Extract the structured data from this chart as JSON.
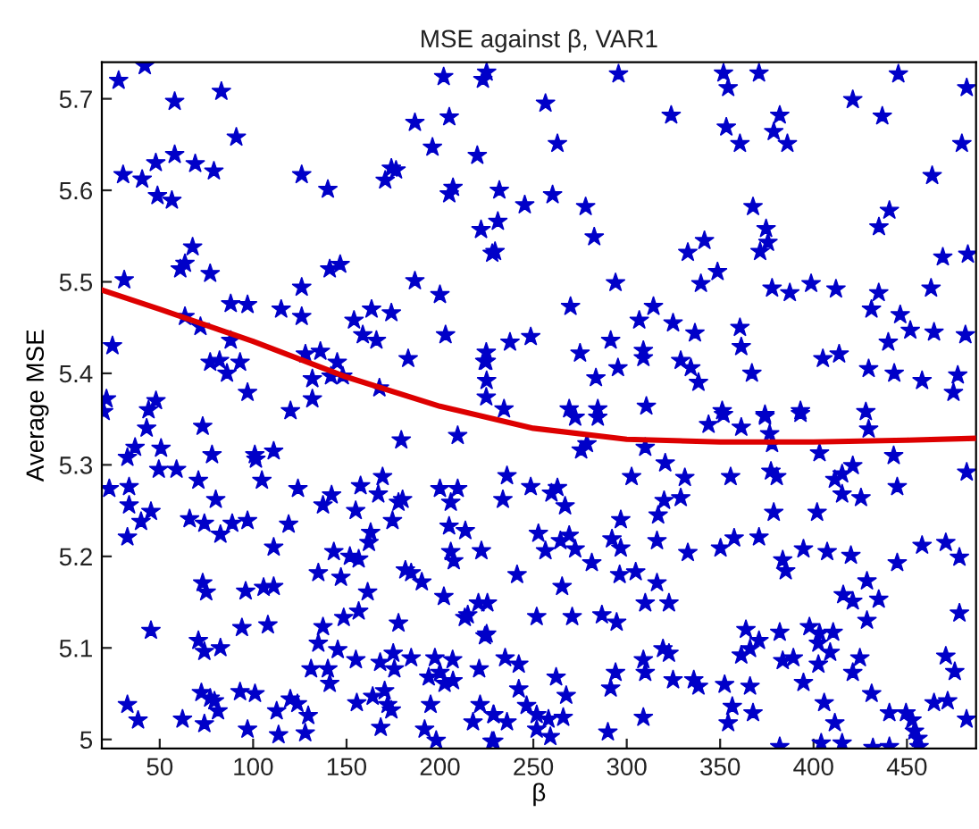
{
  "chart_data": {
    "type": "scatter",
    "title": "MSE against β, VAR1",
    "xlabel": "β",
    "ylabel": "Average MSE",
    "xlim": [
      19,
      487
    ],
    "ylim": [
      4.99,
      5.74
    ],
    "xticks": [
      50,
      100,
      150,
      200,
      250,
      300,
      350,
      400,
      450
    ],
    "yticks": [
      5,
      5.1,
      5.2,
      5.3,
      5.4,
      5.5,
      5.6,
      5.7
    ],
    "grid": false,
    "marker": "star",
    "series": [
      {
        "color": "#0000c8",
        "x": [
          28,
          42,
          58,
          83,
          91,
          30.4,
          40.6,
          47.9,
          58,
          69,
          79,
          48.8,
          56.5,
          31,
          24.7,
          67.6,
          63.5,
          61,
          77,
          88,
          97,
          63.5,
          71.8,
          77,
          82,
          86,
          93,
          88,
          97,
          21.5,
          20,
          44,
          48,
          120,
          126,
          140,
          126,
          141,
          146.6,
          115,
          126,
          154,
          163.4,
          174,
          158.7,
          166,
          128,
          136,
          131.7,
          145,
          141.7,
          148,
          167.6,
          131.7,
          183,
          186.6,
          186.6,
          196,
          205,
          202,
          225,
          223,
          170.7,
          174,
          176.5,
          205,
          207,
          220,
          222,
          228,
          200,
          203,
          224,
          225,
          295.6,
          256.5,
          323.8,
          262.9,
          351.8,
          370.8,
          354.3,
          353.3,
          381.9,
          378.7,
          360.6,
          386,
          421,
          436.8,
          445.4,
          482,
          479.4,
          463.5,
          231.8,
          245.4,
          260.3,
          278,
          282.6,
          229.5,
          231,
          294,
          269.9,
          367.6,
          374.6,
          375.6,
          371.4,
          341.6,
          332.7,
          348.6,
          339.7,
          440.6,
          435,
          469.2,
          482.6,
          377.8,
          387.3,
          398.7,
          412,
          434.9,
          462.9,
          431,
          446.4,
          314.3,
          306.7,
          324.8,
          336.5,
          360.6,
          361.3,
          237.5,
          248.6,
          224.8,
          224.8,
          275,
          291.4,
          308.9,
          308.9,
          328.9,
          334.3,
          338.4,
          295.3,
          283.5,
          367,
          405,
          413.7,
          429.5,
          440,
          451.8,
          464.5,
          481.3,
          443.2,
          458.1,
          477.2,
          474.9,
          224.8,
          234.3,
          269.2,
          284.5,
          310.5,
          351.1,
          393,
          374,
          428,
          23,
          32.7,
          36.8,
          43,
          33.6,
          33.6,
          40,
          45.3,
          32.7,
          50.7,
          49.5,
          59,
          73,
          78,
          70.7,
          80,
          66,
          73.9,
          82.5,
          88.8,
          97,
          100.9,
          101.5,
          111,
          104.7,
          124,
          119,
          111,
          45.3,
          73,
          74.9,
          96,
          105.6,
          111,
          107.9,
          94,
          70.7,
          73.9,
          82.5,
          32.7,
          38.4,
          62.2,
          73.9,
          72.3,
          77,
          79.3,
          81.2,
          93,
          101,
          97,
          112.6,
          113.6,
          119.9,
          123.7,
          129.5,
          127.9,
          131,
          140,
          141,
          134.9,
          137.4,
          145.3,
          148.5,
          134.9,
          147,
          143.2,
          151.8,
          156.5,
          155,
          156.5,
          161.3,
          162,
          162.9,
          137.4,
          142,
          157.5,
          154.9,
          167,
          169.3,
          174.6,
          177.8,
          180,
          179.3,
          209.5,
          200,
          209.5,
          205.8,
          213.6,
          204.9,
          205.8,
          207.4,
          222.2,
          190.3,
          181.5,
          184.6,
          202.1,
          220.6,
          214.9,
          213.3,
          225,
          177.8,
          175,
          175.6,
          168,
          184.6,
          197.3,
          206.8,
          200,
          194,
          202.5,
          207,
          221,
          155.5,
          164,
          170.4,
          172,
          174,
          195,
          168.3,
          191.8,
          198,
          217.7,
          221.5,
          228.8,
          228.8,
          284.5,
          272.4,
          351.8,
          374,
          393,
          343.8,
          361.3,
          429.5,
          278.7,
          275.6,
          309.9,
          376.5,
          377.8,
          403.2,
          442.9,
          482,
          235.9,
          248.6,
          233.7,
          262.9,
          259.7,
          267,
          302.6,
          320.6,
          331.1,
          328.9,
          320,
          316.8,
          296.8,
          355.6,
          377.2,
          380.3,
          378.7,
          401.9,
          411.4,
          415.3,
          421,
          415.3,
          425.4,
          444.8,
          252.7,
          256.5,
          264.5,
          269.2,
          272.4,
          281.3,
          292.1,
          296.8,
          296.2,
          304.8,
          316.2,
          316.2,
          332.7,
          350.2,
          357.5,
          370.8,
          383.5,
          385.1,
          394.6,
          407.3,
          420,
          444.8,
          458.1,
          470.8,
          478.1,
          241.3,
          265.4,
          309.9,
          322.6,
          251.8,
          225.4,
          270.8,
          286.7,
          294.6,
          224.1,
          415.9,
          421,
          428.6,
          434.9,
          428.6,
          397.8,
          403.2,
          410.5,
          402.6,
          408.9,
          363.8,
          370.8,
          366,
          361.3,
          381.9,
          383.5,
          389.2,
          402.6,
          424.8,
          421,
          478.1,
          470.8,
          475.6,
          234.9,
          242.2,
          262.2,
          242.2,
          267.6,
          246.4,
          251.8,
          258.1,
          266,
          228.6,
          235.9,
          227.9,
          251.8,
          259.1,
          289.9,
          294,
          291.4,
          308.9,
          309.9,
          319.4,
          322.6,
          324.8,
          335.9,
          338.4,
          352.4,
          366,
          308.9,
          356.5,
          354.3,
          367.6,
          394.6,
          405.7,
          411.4,
          404.1,
          415.3,
          431.1,
          381.9,
          431.8,
          440.6,
          440.6,
          449.5,
          452.7,
          454,
          455.9,
          456.5,
          464.5,
          471.8,
          481.9
        ],
        "values": [
          5.72,
          5.736,
          5.697,
          5.708,
          5.658,
          5.617,
          5.612,
          5.63,
          5.639,
          5.629,
          5.621,
          5.594,
          5.589,
          5.502,
          5.43,
          5.538,
          5.52,
          5.514,
          5.509,
          5.476,
          5.475,
          5.462,
          5.451,
          5.412,
          5.414,
          5.4,
          5.412,
          5.436,
          5.379,
          5.372,
          5.358,
          5.36,
          5.37,
          5.359,
          5.617,
          5.601,
          5.494,
          5.514,
          5.519,
          5.47,
          5.462,
          5.458,
          5.47,
          5.466,
          5.442,
          5.436,
          5.421,
          5.424,
          5.394,
          5.412,
          5.397,
          5.397,
          5.384,
          5.372,
          5.416,
          5.501,
          5.674,
          5.647,
          5.68,
          5.724,
          5.729,
          5.721,
          5.611,
          5.624,
          5.622,
          5.596,
          5.603,
          5.638,
          5.557,
          5.531,
          5.486,
          5.442,
          5.413,
          5.392,
          5.727,
          5.695,
          5.682,
          5.651,
          5.728,
          5.728,
          5.712,
          5.669,
          5.682,
          5.664,
          5.651,
          5.651,
          5.699,
          5.681,
          5.727,
          5.712,
          5.651,
          5.616,
          5.6,
          5.584,
          5.595,
          5.582,
          5.549,
          5.533,
          5.566,
          5.499,
          5.473,
          5.582,
          5.558,
          5.543,
          5.533,
          5.545,
          5.532,
          5.511,
          5.498,
          5.578,
          5.56,
          5.527,
          5.53,
          5.493,
          5.488,
          5.498,
          5.492,
          5.488,
          5.493,
          5.47,
          5.464,
          5.473,
          5.458,
          5.455,
          5.444,
          5.45,
          5.429,
          5.434,
          5.44,
          5.423,
          5.413,
          5.422,
          5.436,
          5.425,
          5.417,
          5.414,
          5.406,
          5.39,
          5.406,
          5.395,
          5.4,
          5.416,
          5.421,
          5.405,
          5.434,
          5.447,
          5.445,
          5.442,
          5.4,
          5.392,
          5.398,
          5.379,
          5.374,
          5.361,
          5.361,
          5.361,
          5.364,
          5.359,
          5.359,
          5.355,
          5.358,
          5.274,
          5.308,
          5.319,
          5.34,
          5.276,
          5.256,
          5.238,
          5.249,
          5.221,
          5.318,
          5.295,
          5.295,
          5.342,
          5.311,
          5.283,
          5.262,
          5.241,
          5.236,
          5.224,
          5.236,
          5.239,
          5.311,
          5.306,
          5.315,
          5.283,
          5.274,
          5.235,
          5.21,
          5.119,
          5.171,
          5.161,
          5.162,
          5.166,
          5.167,
          5.125,
          5.122,
          5.108,
          5.096,
          5.1,
          5.038,
          5.021,
          5.022,
          5.017,
          5.051,
          5.045,
          5.042,
          5.031,
          5.052,
          5.05,
          5.011,
          5.031,
          5.005,
          5.044,
          5.039,
          5.026,
          5.007,
          5.077,
          5.077,
          5.061,
          5.105,
          5.123,
          5.098,
          5.133,
          5.182,
          5.177,
          5.205,
          5.2,
          5.197,
          5.087,
          5.14,
          5.161,
          5.215,
          5.226,
          5.256,
          5.267,
          5.277,
          5.25,
          5.268,
          5.287,
          5.239,
          5.259,
          5.262,
          5.327,
          5.332,
          5.274,
          5.274,
          5.259,
          5.228,
          5.233,
          5.205,
          5.195,
          5.206,
          5.172,
          5.185,
          5.182,
          5.156,
          5.149,
          5.136,
          5.133,
          5.115,
          5.127,
          5.094,
          5.077,
          5.084,
          5.089,
          5.089,
          5.087,
          5.073,
          5.068,
          5.061,
          5.064,
          5.077,
          5.04,
          5.047,
          5.053,
          5.038,
          5.032,
          5.038,
          5.013,
          5.011,
          4.999,
          5.019,
          5.038,
          4.998,
          5.027,
          5.352,
          5.352,
          5.355,
          5.353,
          5.356,
          5.344,
          5.341,
          5.339,
          5.323,
          5.316,
          5.319,
          5.334,
          5.323,
          5.313,
          5.31,
          5.292,
          5.288,
          5.276,
          5.262,
          5.275,
          5.269,
          5.255,
          5.287,
          5.302,
          5.286,
          5.264,
          5.261,
          5.245,
          5.24,
          5.287,
          5.293,
          5.287,
          5.248,
          5.248,
          5.284,
          5.29,
          5.299,
          5.268,
          5.264,
          5.276,
          5.225,
          5.206,
          5.217,
          5.223,
          5.208,
          5.193,
          5.219,
          5.209,
          5.18,
          5.183,
          5.217,
          5.171,
          5.204,
          5.209,
          5.22,
          5.221,
          5.196,
          5.184,
          5.208,
          5.205,
          5.201,
          5.193,
          5.212,
          5.215,
          5.199,
          5.18,
          5.167,
          5.149,
          5.149,
          5.134,
          5.149,
          5.134,
          5.136,
          5.128,
          5.113,
          5.158,
          5.151,
          5.173,
          5.153,
          5.13,
          5.123,
          5.116,
          5.117,
          5.105,
          5.095,
          5.12,
          5.108,
          5.099,
          5.092,
          5.117,
          5.086,
          5.089,
          5.082,
          5.089,
          5.073,
          5.138,
          5.091,
          5.074,
          5.089,
          5.082,
          5.068,
          5.055,
          5.048,
          5.037,
          5.027,
          5.022,
          5.024,
          5.027,
          5.019,
          4.998,
          5.011,
          5.003,
          5.008,
          5.073,
          5.056,
          5.087,
          5.073,
          5.099,
          5.094,
          5.065,
          5.065,
          5.058,
          5.06,
          5.058,
          5.024,
          5.036,
          5.018,
          5.029,
          5.062,
          5.04,
          5.018,
          4.996,
          4.996,
          5.05,
          4.992,
          4.991,
          4.992,
          5.029,
          5.029,
          5.021,
          5.009,
          5.001,
          4.992,
          5.04,
          5.042,
          5.022
        ]
      },
      {
        "type": "line",
        "color": "#dd0000",
        "marker": "none",
        "x": [
          19,
          50,
          100,
          150,
          200,
          250,
          300,
          350,
          400,
          450,
          487
        ],
        "values": [
          5.491,
          5.47,
          5.435,
          5.396,
          5.364,
          5.34,
          5.328,
          5.325,
          5.325,
          5.327,
          5.329
        ]
      }
    ]
  }
}
